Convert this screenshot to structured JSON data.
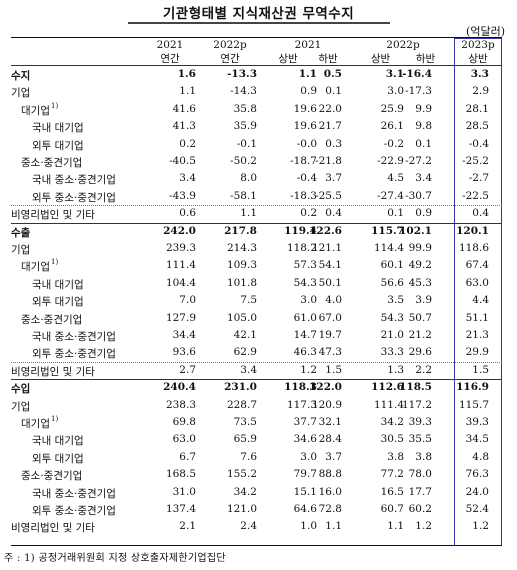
{
  "title": "기관형태별 지식재산권 무역수지",
  "unit": "(억달러)",
  "header": {
    "years": [
      "2021",
      "2022p",
      "2021",
      "2022p",
      "2023p"
    ],
    "subs": [
      "연간",
      "연간",
      "상반",
      "하반",
      "상반",
      "하반",
      "상반"
    ]
  },
  "rows": [
    {
      "label": "수지",
      "level": 0,
      "bold": true,
      "values": [
        "1.6",
        "-13.3",
        "1.1",
        "0.5",
        "3.1",
        "-16.4",
        "3.3"
      ]
    },
    {
      "label": "기업",
      "level": 0,
      "values": [
        "1.1",
        "-14.3",
        "0.9",
        "0.1",
        "3.0",
        "-17.3",
        "2.9"
      ]
    },
    {
      "label": "대기업",
      "sup": "1)",
      "level": 1,
      "values": [
        "41.6",
        "35.8",
        "19.6",
        "22.0",
        "25.9",
        "9.9",
        "28.1"
      ]
    },
    {
      "label": "국내 대기업",
      "level": 2,
      "values": [
        "41.3",
        "35.9",
        "19.6",
        "21.7",
        "26.1",
        "9.8",
        "28.5"
      ]
    },
    {
      "label": "외투 대기업",
      "level": 2,
      "values": [
        "0.2",
        "-0.1",
        "-0.0",
        "0.3",
        "-0.2",
        "0.1",
        "-0.4"
      ]
    },
    {
      "label": "중소·중견기업",
      "level": 1,
      "values": [
        "-40.5",
        "-50.2",
        "-18.7",
        "-21.8",
        "-22.9",
        "-27.2",
        "-25.2"
      ]
    },
    {
      "label": "국내 중소·중견기업",
      "level": 2,
      "values": [
        "3.4",
        "8.0",
        "-0.4",
        "3.7",
        "4.5",
        "3.4",
        "-2.7"
      ]
    },
    {
      "label": "외투 중소·중견기업",
      "level": 2,
      "values": [
        "-43.9",
        "-58.1",
        "-18.3",
        "-25.5",
        "-27.4",
        "-30.7",
        "-22.5"
      ]
    },
    {
      "label": "비영리법인 및 기타",
      "level": 0,
      "values": [
        "0.6",
        "1.1",
        "0.2",
        "0.4",
        "0.1",
        "0.9",
        "0.4"
      ]
    },
    {
      "label": "수출",
      "level": 0,
      "bold": true,
      "values": [
        "242.0",
        "217.8",
        "119.4",
        "122.6",
        "115.7",
        "102.1",
        "120.1"
      ]
    },
    {
      "label": "기업",
      "level": 0,
      "values": [
        "239.3",
        "214.3",
        "118.2",
        "121.1",
        "114.4",
        "99.9",
        "118.6"
      ]
    },
    {
      "label": "대기업",
      "sup": "1)",
      "level": 1,
      "values": [
        "111.4",
        "109.3",
        "57.3",
        "54.1",
        "60.1",
        "49.2",
        "67.4"
      ]
    },
    {
      "label": "국내 대기업",
      "level": 2,
      "values": [
        "104.4",
        "101.8",
        "54.3",
        "50.1",
        "56.6",
        "45.3",
        "63.0"
      ]
    },
    {
      "label": "외투 대기업",
      "level": 2,
      "values": [
        "7.0",
        "7.5",
        "3.0",
        "4.0",
        "3.5",
        "3.9",
        "4.4"
      ]
    },
    {
      "label": "중소·중견기업",
      "level": 1,
      "values": [
        "127.9",
        "105.0",
        "61.0",
        "67.0",
        "54.3",
        "50.7",
        "51.1"
      ]
    },
    {
      "label": "국내 중소·중견기업",
      "level": 2,
      "values": [
        "34.4",
        "42.1",
        "14.7",
        "19.7",
        "21.0",
        "21.2",
        "21.3"
      ]
    },
    {
      "label": "외투 중소·중견기업",
      "level": 2,
      "values": [
        "93.6",
        "62.9",
        "46.3",
        "47.3",
        "33.3",
        "29.6",
        "29.9"
      ]
    },
    {
      "label": "비영리법인 및 기타",
      "level": 0,
      "values": [
        "2.7",
        "3.4",
        "1.2",
        "1.5",
        "1.3",
        "2.2",
        "1.5"
      ]
    },
    {
      "label": "수입",
      "level": 0,
      "bold": true,
      "values": [
        "240.4",
        "231.0",
        "118.3",
        "122.0",
        "112.6",
        "118.5",
        "116.9"
      ]
    },
    {
      "label": "기업",
      "level": 0,
      "values": [
        "238.3",
        "228.7",
        "117.3",
        "120.9",
        "111.4",
        "117.2",
        "115.7"
      ]
    },
    {
      "label": "대기업",
      "sup": "1)",
      "level": 1,
      "values": [
        "69.8",
        "73.5",
        "37.7",
        "32.1",
        "34.2",
        "39.3",
        "39.3"
      ]
    },
    {
      "label": "국내 대기업",
      "level": 2,
      "values": [
        "63.0",
        "65.9",
        "34.6",
        "28.4",
        "30.5",
        "35.5",
        "34.5"
      ]
    },
    {
      "label": "외투 대기업",
      "level": 2,
      "values": [
        "6.7",
        "7.6",
        "3.0",
        "3.7",
        "3.8",
        "3.8",
        "4.8"
      ]
    },
    {
      "label": "중소·중견기업",
      "level": 1,
      "values": [
        "168.5",
        "155.2",
        "79.7",
        "88.8",
        "77.2",
        "78.0",
        "76.3"
      ]
    },
    {
      "label": "국내 중소·중견기업",
      "level": 2,
      "values": [
        "31.0",
        "34.2",
        "15.1",
        "16.0",
        "16.5",
        "17.7",
        "24.0"
      ]
    },
    {
      "label": "외투 중소·중견기업",
      "level": 2,
      "values": [
        "137.4",
        "121.0",
        "64.6",
        "72.8",
        "60.7",
        "60.2",
        "52.4"
      ]
    },
    {
      "label": "비영리법인 및 기타",
      "level": 0,
      "values": [
        "2.1",
        "2.4",
        "1.0",
        "1.1",
        "1.1",
        "1.2",
        "1.2"
      ]
    }
  ],
  "footnote": "주 : 1) 공정거래위원회 지정 상호출자제한기업집단"
}
